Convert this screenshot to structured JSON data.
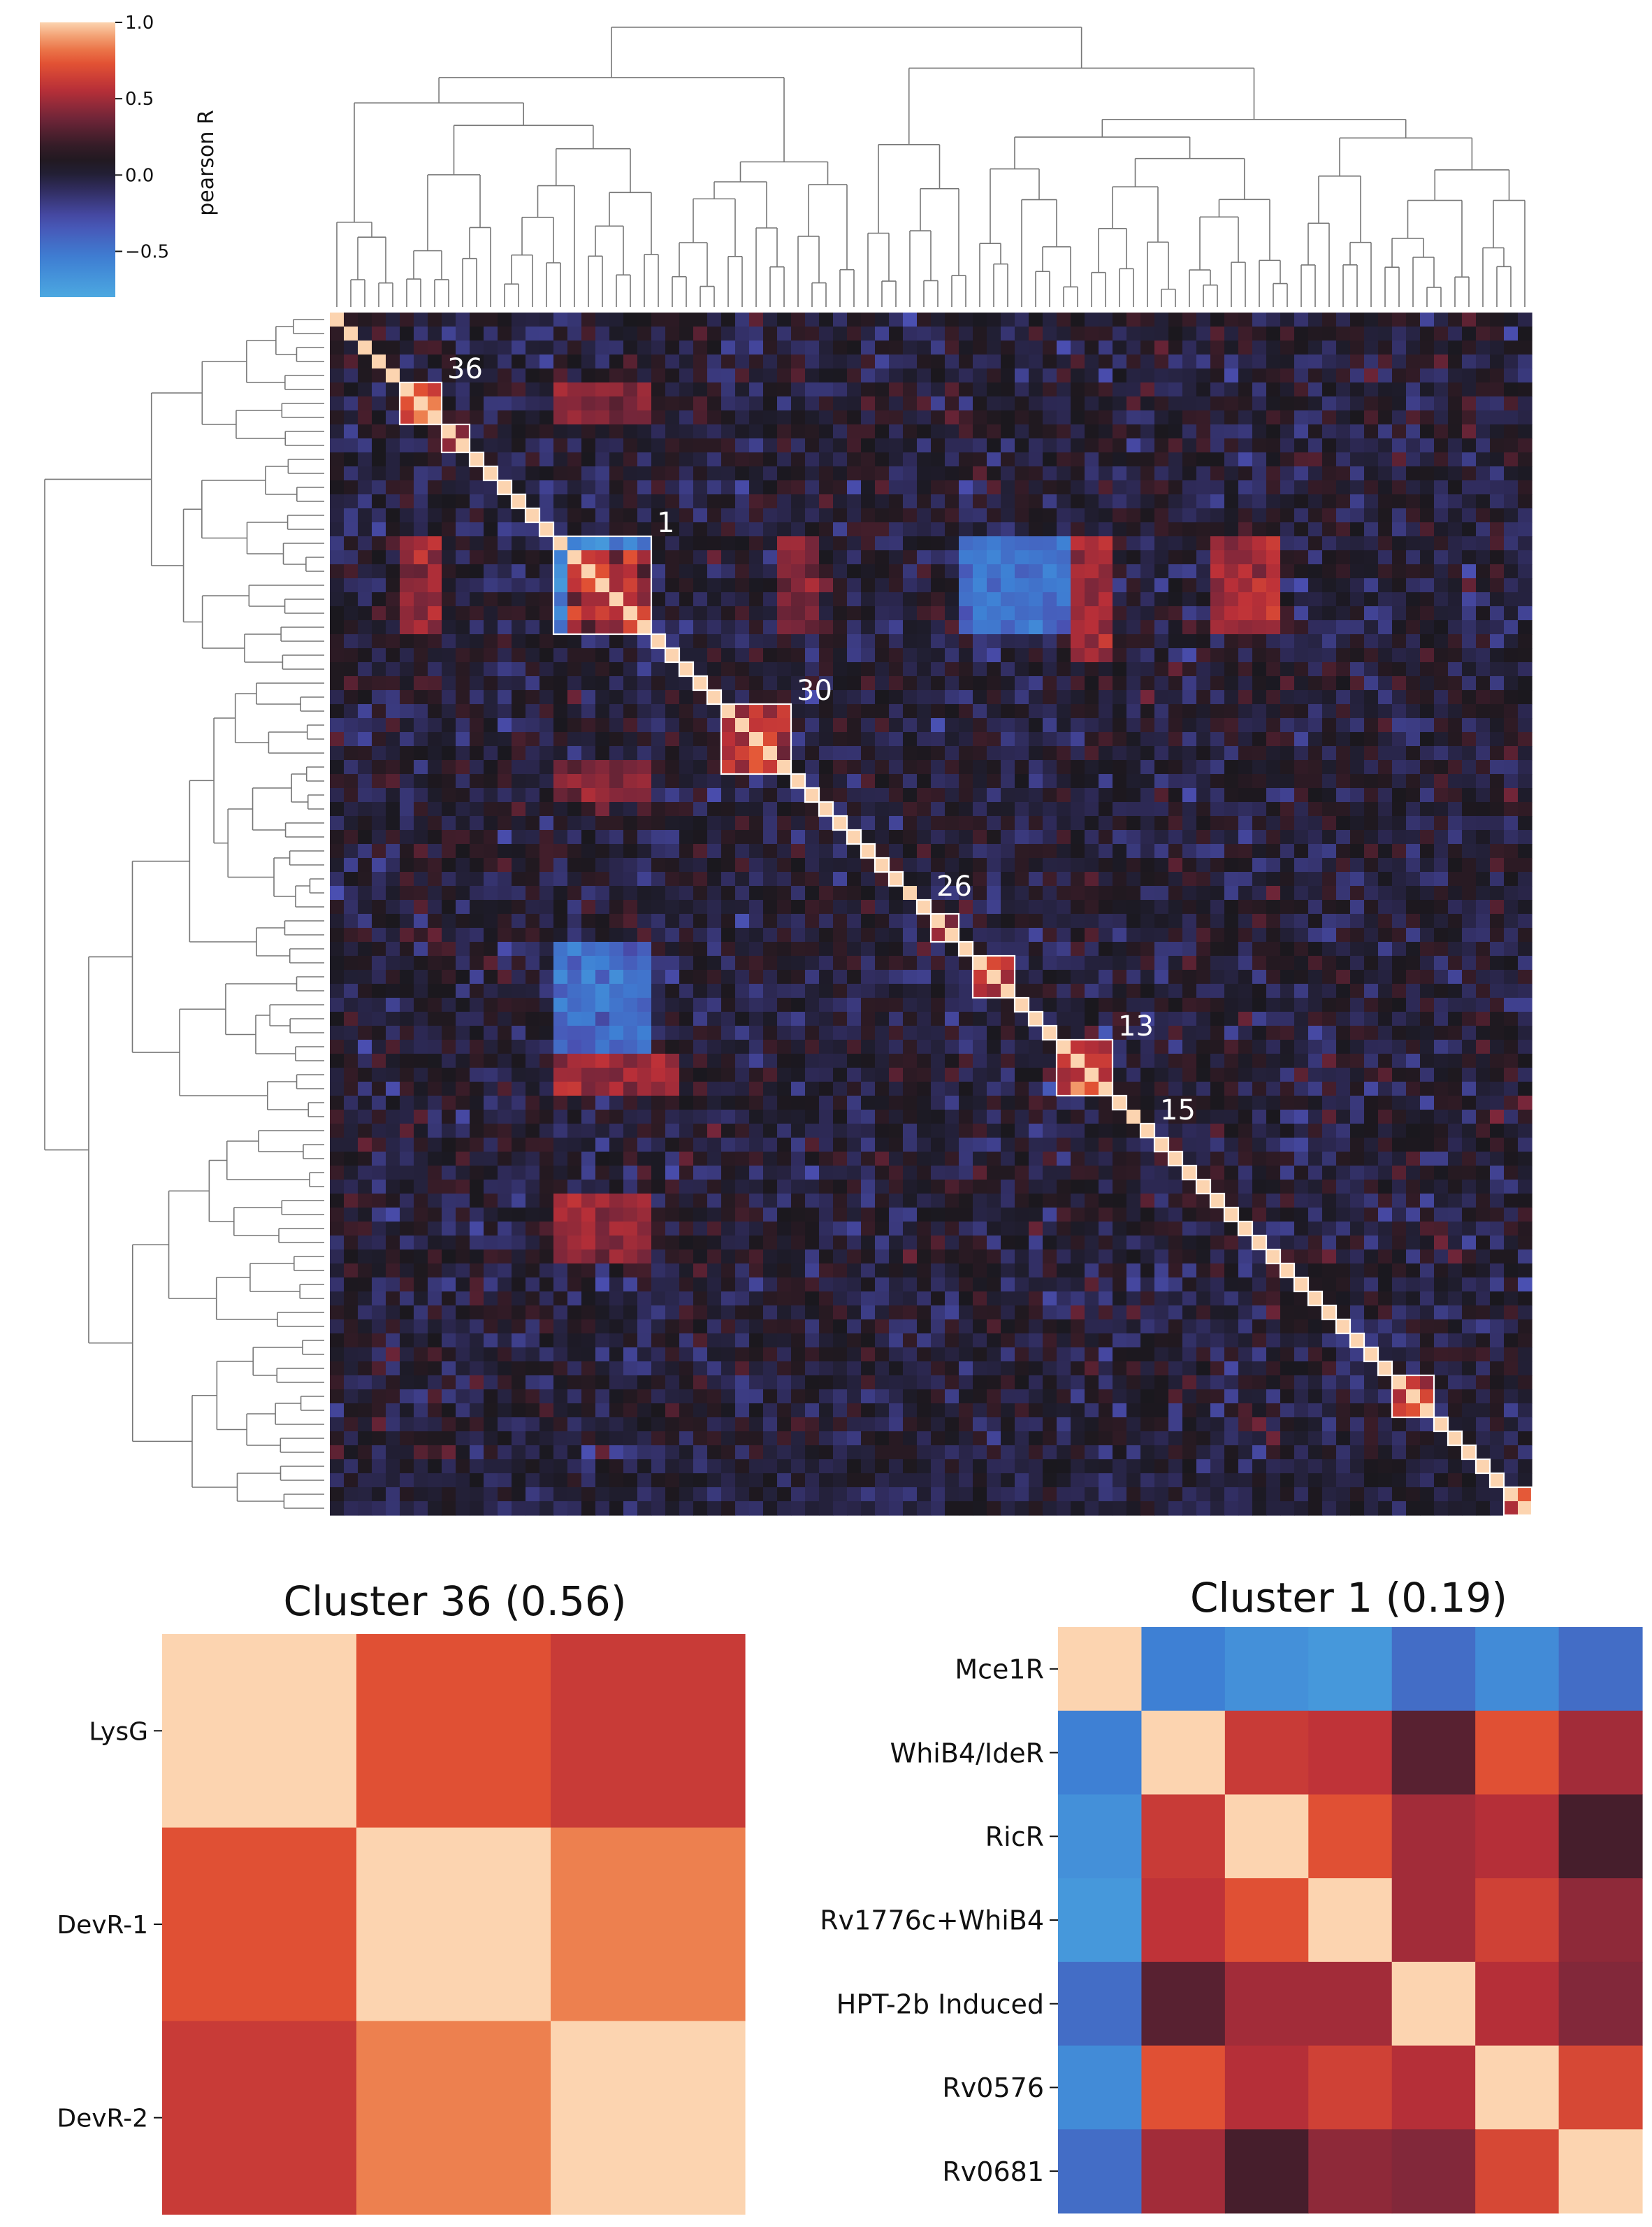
{
  "chart_data": [
    {
      "type": "heatmap",
      "subtype": "clustered-correlation-matrix",
      "title": "",
      "size": 86,
      "colorbar": {
        "label": "pearson R",
        "ticks": [
          "1.0",
          "0.5",
          "0.0",
          "−0.5"
        ],
        "tick_values": [
          1.0,
          0.5,
          0.0,
          -0.5
        ],
        "range": [
          -0.8,
          1.0
        ],
        "colormap": "icefire"
      },
      "highlighted_clusters": [
        {
          "label": "36",
          "start": 5,
          "size": 3
        },
        {
          "label": "",
          "start": 8,
          "size": 2
        },
        {
          "label": "",
          "start": 10,
          "size": 1
        },
        {
          "label": "",
          "start": 11,
          "size": 1
        },
        {
          "label": "",
          "start": 12,
          "size": 1
        },
        {
          "label": "",
          "start": 13,
          "size": 1
        },
        {
          "label": "",
          "start": 14,
          "size": 1
        },
        {
          "label": "",
          "start": 15,
          "size": 1
        },
        {
          "label": "1",
          "start": 16,
          "size": 7
        },
        {
          "label": "",
          "start": 23,
          "size": 1
        },
        {
          "label": "",
          "start": 24,
          "size": 1
        },
        {
          "label": "",
          "start": 25,
          "size": 1
        },
        {
          "label": "",
          "start": 26,
          "size": 1
        },
        {
          "label": "",
          "start": 27,
          "size": 1
        },
        {
          "label": "30",
          "start": 28,
          "size": 5
        },
        {
          "label": "",
          "start": 33,
          "size": 1
        },
        {
          "label": "",
          "start": 34,
          "size": 1
        },
        {
          "label": "",
          "start": 35,
          "size": 1
        },
        {
          "label": "",
          "start": 36,
          "size": 1
        },
        {
          "label": "",
          "start": 37,
          "size": 1
        },
        {
          "label": "",
          "start": 38,
          "size": 1
        },
        {
          "label": "",
          "start": 39,
          "size": 1
        },
        {
          "label": "",
          "start": 40,
          "size": 1
        },
        {
          "label": "26",
          "start": 42,
          "size": 1
        },
        {
          "label": "",
          "start": 43,
          "size": 2
        },
        {
          "label": "",
          "start": 45,
          "size": 1
        },
        {
          "label": "",
          "start": 46,
          "size": 3
        },
        {
          "label": "",
          "start": 49,
          "size": 1
        },
        {
          "label": "",
          "start": 50,
          "size": 1
        },
        {
          "label": "",
          "start": 51,
          "size": 1
        },
        {
          "label": "13",
          "start": 52,
          "size": 4
        },
        {
          "label": "",
          "start": 56,
          "size": 1
        },
        {
          "label": "15",
          "start": 58,
          "size": 1
        },
        {
          "label": "",
          "start": 59,
          "size": 1
        },
        {
          "label": "",
          "start": 60,
          "size": 1
        },
        {
          "label": "",
          "start": 61,
          "size": 1
        },
        {
          "label": "",
          "start": 62,
          "size": 1
        },
        {
          "label": "",
          "start": 63,
          "size": 1
        },
        {
          "label": "",
          "start": 64,
          "size": 1
        },
        {
          "label": "",
          "start": 65,
          "size": 1
        },
        {
          "label": "",
          "start": 66,
          "size": 1
        },
        {
          "label": "",
          "start": 67,
          "size": 1
        },
        {
          "label": "",
          "start": 68,
          "size": 1
        },
        {
          "label": "",
          "start": 69,
          "size": 1
        },
        {
          "label": "",
          "start": 70,
          "size": 1
        },
        {
          "label": "",
          "start": 71,
          "size": 1
        },
        {
          "label": "",
          "start": 72,
          "size": 1
        },
        {
          "label": "",
          "start": 73,
          "size": 1
        },
        {
          "label": "",
          "start": 74,
          "size": 1
        },
        {
          "label": "",
          "start": 75,
          "size": 1
        },
        {
          "label": "",
          "start": 76,
          "size": 3
        },
        {
          "label": "",
          "start": 79,
          "size": 1
        },
        {
          "label": "",
          "start": 80,
          "size": 1
        },
        {
          "label": "",
          "start": 81,
          "size": 1
        },
        {
          "label": "",
          "start": 82,
          "size": 1
        },
        {
          "label": "",
          "start": 83,
          "size": 1
        },
        {
          "label": "",
          "start": 84,
          "size": 2
        }
      ],
      "strong_blocks": [
        {
          "rows": [
            5,
            7
          ],
          "cols": [
            16,
            22
          ],
          "value": 0.45
        },
        {
          "rows": [
            16,
            22
          ],
          "cols": [
            5,
            7
          ],
          "value": 0.45
        },
        {
          "rows": [
            16,
            22
          ],
          "cols": [
            32,
            34
          ],
          "value": 0.4
        },
        {
          "rows": [
            32,
            34
          ],
          "cols": [
            16,
            22
          ],
          "value": 0.4
        },
        {
          "rows": [
            16,
            22
          ],
          "cols": [
            45,
            55
          ],
          "value": -0.45
        },
        {
          "rows": [
            45,
            55
          ],
          "cols": [
            16,
            22
          ],
          "value": -0.45
        },
        {
          "rows": [
            16,
            22
          ],
          "cols": [
            66,
            67
          ],
          "value": 0.5
        },
        {
          "rows": [
            66,
            67
          ],
          "cols": [
            16,
            22
          ],
          "value": 0.5
        },
        {
          "rows": [
            46,
            48
          ],
          "cols": [
            16,
            20
          ],
          "value": -0.5
        },
        {
          "rows": [
            16,
            20
          ],
          "cols": [
            46,
            48
          ],
          "value": -0.5
        },
        {
          "rows": [
            53,
            55
          ],
          "cols": [
            16,
            24
          ],
          "value": 0.5
        },
        {
          "rows": [
            16,
            24
          ],
          "cols": [
            53,
            55
          ],
          "value": 0.5
        },
        {
          "rows": [
            63,
            65
          ],
          "cols": [
            16,
            22
          ],
          "value": 0.5
        },
        {
          "rows": [
            16,
            22
          ],
          "cols": [
            63,
            65
          ],
          "value": 0.5
        },
        {
          "rows": [
            82,
            85
          ],
          "cols": [
            0,
            85
          ],
          "value": 0.0
        }
      ]
    },
    {
      "type": "heatmap",
      "title": "Cluster 36 (0.56)",
      "row_labels": [
        "LysG",
        "DevR-1",
        "DevR-2"
      ],
      "col_labels": [
        "LysG",
        "DevR-1",
        "DevR-2"
      ],
      "values": [
        [
          1.0,
          0.72,
          0.62
        ],
        [
          0.72,
          1.0,
          0.85
        ],
        [
          0.62,
          0.85,
          1.0
        ]
      ],
      "range": [
        -0.8,
        1.0
      ]
    },
    {
      "type": "heatmap",
      "title": "Cluster 1 (0.19)",
      "row_labels": [
        "Mce1R",
        "WhiB4/IdeR",
        "RicR",
        "Rv1776c+WhiB4",
        "HPT-2b Induced",
        "Rv0576",
        "Rv0681"
      ],
      "col_labels": [
        "Mce1R",
        "WhiB4/IdeR",
        "RicR",
        "Rv1776c+WhiB4",
        "HPT-2b Induced",
        "Rv0576",
        "Rv0681"
      ],
      "values": [
        [
          1.0,
          -0.55,
          -0.65,
          -0.7,
          -0.45,
          -0.62,
          -0.45
        ],
        [
          -0.55,
          1.0,
          0.62,
          0.58,
          0.3,
          0.72,
          0.5
        ],
        [
          -0.65,
          0.62,
          1.0,
          0.72,
          0.5,
          0.55,
          0.25
        ],
        [
          -0.7,
          0.58,
          0.72,
          1.0,
          0.5,
          0.65,
          0.45
        ],
        [
          -0.45,
          0.3,
          0.5,
          0.5,
          1.0,
          0.55,
          0.42
        ],
        [
          -0.62,
          0.72,
          0.55,
          0.65,
          0.55,
          1.0,
          0.68
        ],
        [
          -0.45,
          0.5,
          0.25,
          0.45,
          0.42,
          0.68,
          1.0
        ]
      ],
      "range": [
        -0.8,
        1.0
      ]
    }
  ]
}
